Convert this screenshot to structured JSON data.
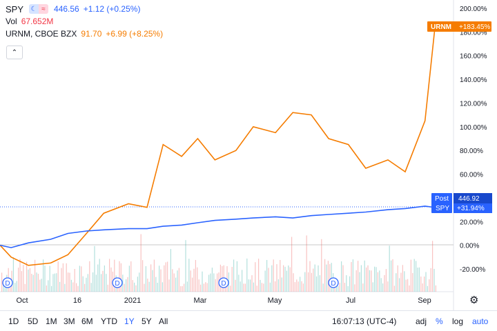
{
  "legend": {
    "spy": {
      "symbol": "SPY",
      "price": "446.56",
      "change": "+1.12 (+0.25%)"
    },
    "vol": {
      "label": "Vol",
      "value": "67.652M"
    },
    "urnm": {
      "symbol": "URNM, CBOE BZX",
      "price": "91.70",
      "change": "+6.99 (+8.25%)"
    }
  },
  "price_axis": {
    "ticks": [
      "200.00%",
      "180.00%",
      "160.00%",
      "140.00%",
      "120.00%",
      "100.00%",
      "80.00%",
      "60.00%",
      "40.00%",
      "20.00%",
      "0.00%",
      "-20.00%"
    ],
    "urnm_badge": {
      "label": "URNM",
      "value": "+183.45%"
    },
    "spy_badge": {
      "label1": "Post",
      "value1": "446.92",
      "label2": "SPY",
      "value2": "+31.94%"
    }
  },
  "time_axis": {
    "labels": [
      "Oct",
      "16",
      "2021",
      "Mar",
      "May",
      "Jul",
      "Sep"
    ]
  },
  "dividend_marker": "D",
  "toolbar": {
    "ranges": [
      "1D",
      "5D",
      "1M",
      "3M",
      "6M",
      "YTD",
      "1Y",
      "5Y",
      "All"
    ],
    "active_range": "1Y",
    "time": "16:07:13 (UTC-4)",
    "options": [
      "adj",
      "%",
      "log",
      "auto"
    ]
  },
  "colors": {
    "spy": "#2962ff",
    "urnm": "#f57c00",
    "volume_up": "#26a69a",
    "volume_down": "#ef5350"
  },
  "chart_data": {
    "type": "line",
    "x": [
      "2020-09-22",
      "2020-10-01",
      "2020-10-15",
      "2020-11-02",
      "2020-11-16",
      "2020-12-01",
      "2020-12-15",
      "2021-01-04",
      "2021-01-19",
      "2021-02-01",
      "2021-02-16",
      "2021-03-01",
      "2021-03-15",
      "2021-04-01",
      "2021-04-15",
      "2021-05-03",
      "2021-05-17",
      "2021-06-01",
      "2021-06-15",
      "2021-07-01",
      "2021-07-15",
      "2021-08-02",
      "2021-08-16",
      "2021-09-01",
      "2021-09-09"
    ],
    "series": [
      {
        "name": "URNM",
        "values": [
          0,
          -10,
          -17,
          -15,
          -8,
          10,
          27,
          35,
          32,
          85,
          75,
          90,
          72,
          80,
          100,
          95,
          112,
          110,
          90,
          85,
          65,
          72,
          62,
          105,
          183.45
        ]
      },
      {
        "name": "SPY",
        "values": [
          0,
          -2,
          2,
          5,
          10,
          12,
          13,
          14,
          14,
          16,
          17,
          19,
          21,
          22,
          23,
          24,
          23,
          25,
          26,
          27,
          28,
          30,
          31,
          33,
          31.94
        ]
      }
    ],
    "ylim": [
      -20,
      200
    ],
    "yscale": "percent"
  }
}
